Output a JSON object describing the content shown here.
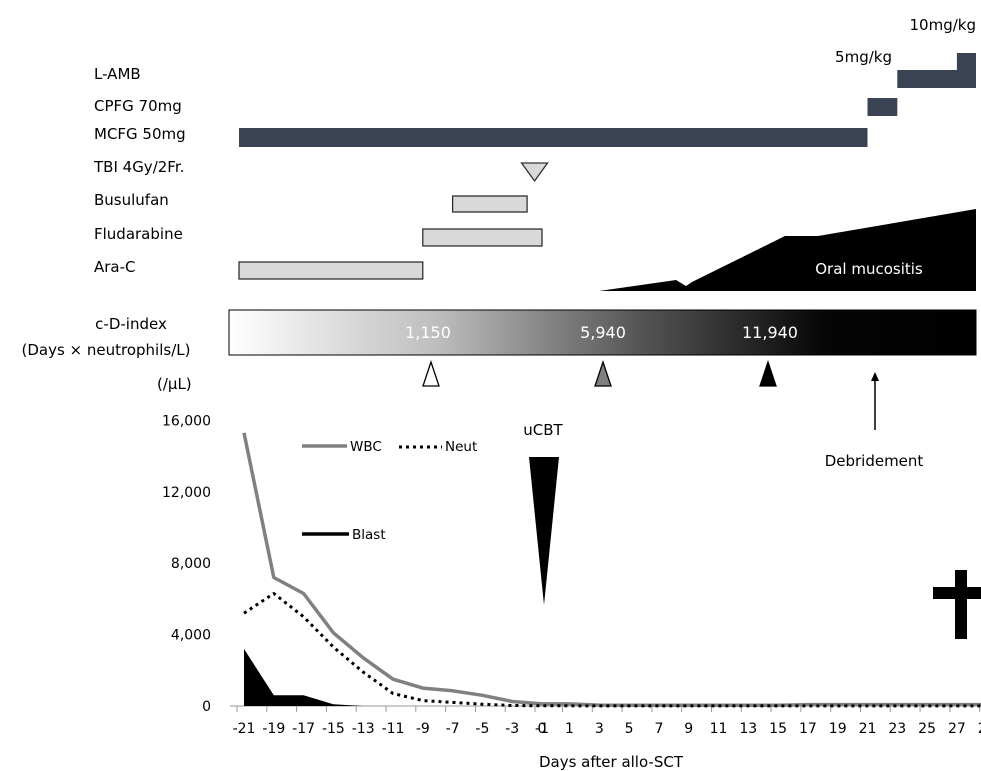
{
  "chart_data": {
    "type": "line",
    "xlabel": "Days after allo-SCT",
    "ylabel": "(/μL)",
    "ylim": [
      0,
      16000
    ],
    "yticks": [
      0,
      4000,
      8000,
      12000,
      16000
    ],
    "ytick_labels": [
      "0",
      "4,000",
      "8,000",
      "12,000",
      "16,000"
    ],
    "xlim": [
      -21,
      31
    ],
    "xticks": [
      -21,
      -19,
      -17,
      -15,
      -13,
      -11,
      -9,
      -7,
      -5,
      -3,
      -1,
      0,
      1,
      3,
      5,
      7,
      9,
      11,
      13,
      15,
      17,
      19,
      21,
      23,
      25,
      27,
      29
    ],
    "xtick_labels": [
      "-21",
      "-19",
      "-17",
      "-15",
      "-13",
      "-11",
      "-9",
      "-7",
      "-5",
      "-3",
      "-1",
      "0",
      "1",
      "3",
      "5",
      "7",
      "9",
      "11",
      "13",
      "15",
      "17",
      "19",
      "21",
      "23",
      "25",
      "27",
      "29"
    ],
    "legend": [
      {
        "name": "WBC",
        "style": "solid-gray"
      },
      {
        "name": "Neut",
        "style": "dotted-black"
      },
      {
        "name": "Blast",
        "style": "solid-black"
      }
    ],
    "series": [
      {
        "name": "WBC",
        "color": "#808080",
        "style": "solid",
        "x": [
          -21,
          -19,
          -17,
          -15,
          -13,
          -11,
          -9,
          -7,
          -5,
          -3,
          -1,
          1,
          3,
          7,
          11,
          15,
          17,
          21,
          25,
          29,
          31
        ],
        "values": [
          15300,
          7200,
          6300,
          4100,
          2700,
          1500,
          1000,
          850,
          600,
          250,
          120,
          120,
          50,
          40,
          40,
          40,
          80,
          80,
          80,
          80,
          80
        ]
      },
      {
        "name": "Neut",
        "color": "#000000",
        "style": "dotted",
        "x": [
          -21,
          -19,
          -17,
          -15,
          -13,
          -11,
          -9,
          -7,
          -5,
          -3,
          -1,
          1,
          3,
          31
        ],
        "values": [
          5200,
          6300,
          5000,
          3300,
          1900,
          700,
          300,
          200,
          100,
          30,
          10,
          10,
          5,
          5
        ]
      },
      {
        "name": "Blast",
        "color": "#000000",
        "style": "area",
        "x": [
          -21,
          -19,
          -17,
          -15,
          -13,
          -11,
          -9,
          31
        ],
        "values": [
          3200,
          600,
          600,
          100,
          0,
          0,
          0,
          0
        ]
      }
    ],
    "regimen": {
      "rows": [
        {
          "label": "L-AMB"
        },
        {
          "label": "CPFG 70mg"
        },
        {
          "label": "MCFG 50mg"
        },
        {
          "label": "TBI 4Gy/2Fr."
        },
        {
          "label": "Busulufan"
        },
        {
          "label": "Fludarabine"
        },
        {
          "label": "Ara-C"
        }
      ],
      "bars": [
        {
          "row": "L-AMB",
          "start": 23,
          "end": 31,
          "fill": "#3a4354",
          "dose": "5mg/kg"
        },
        {
          "row": "L-AMB",
          "start": 27,
          "end": 31,
          "fill": "#3a4354",
          "dose": "10mg/kg"
        },
        {
          "row": "CPFG 70mg",
          "start": 21,
          "end": 23,
          "fill": "#3a4354"
        },
        {
          "row": "MCFG 50mg",
          "start": -21,
          "end": 21,
          "fill": "#3a4354"
        },
        {
          "row": "Busulufan",
          "start": -7,
          "end": -2,
          "fill": "#d9d9d9"
        },
        {
          "row": "Fludarabine",
          "start": -9,
          "end": -1,
          "fill": "#d9d9d9"
        },
        {
          "row": "Ara-C",
          "start": -21,
          "end": -9,
          "fill": "#d9d9d9"
        }
      ],
      "tbi_marker_day": -1.5,
      "mucositis_label": "Oral mucositis",
      "mucositis_start_day": 4
    },
    "cd_index": {
      "title": "c-D-index",
      "subtitle": "(Days × neutrophils/L)",
      "values": [
        {
          "label": "1,150",
          "day": -8,
          "marker": "white-triangle"
        },
        {
          "label": "5,940",
          "day": 4,
          "marker": "gray-triangle"
        },
        {
          "label": "11,940",
          "day": 16,
          "marker": "black-triangle"
        }
      ],
      "debridement_label": "Debridement",
      "debridement_day": 24
    },
    "annotations": {
      "ucbt": "uCBT",
      "death_symbol": "✝"
    }
  }
}
